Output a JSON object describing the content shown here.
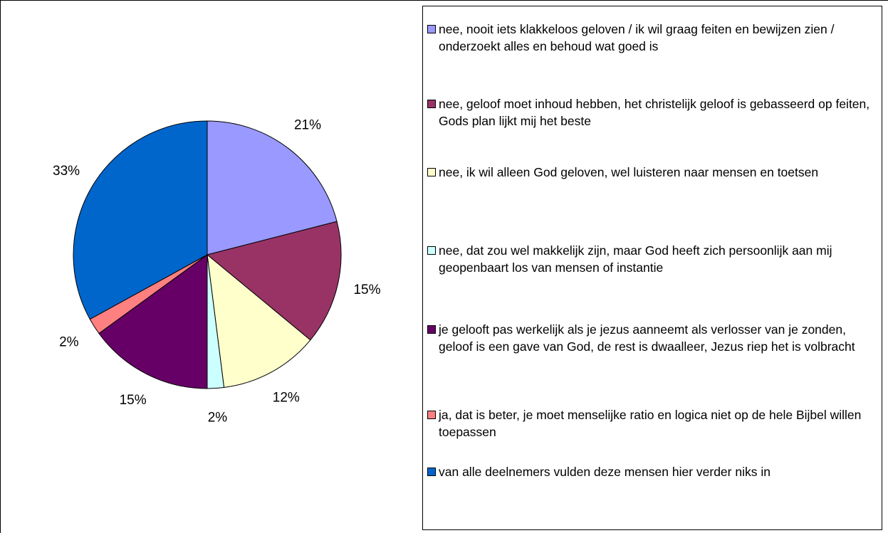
{
  "chart_data": {
    "type": "pie",
    "categories": [
      "nee, nooit iets klakkeloos geloven / ik wil graag feiten en bewijzen zien / onderzoekt alles en behoud wat goed is",
      "nee, geloof moet inhoud hebben, het christelijk geloof is gebasseerd op feiten, Gods plan lijkt mij het beste",
      "nee, ik wil alleen God geloven, wel luisteren naar mensen en toetsen",
      "nee, dat zou wel makkelijk zijn, maar God heeft zich persoonlijk aan mij geopenbaart los van mensen of instantie",
      "je gelooft pas werkelijk als je jezus aanneemt als verlosser van je zonden, geloof is een gave van God, de rest is dwaalleer, Jezus riep het is volbracht",
      "ja, dat is beter, je moet menselijke ratio en logica niet op de hele Bijbel willen toepassen",
      "van alle deelnemers vulden deze mensen hier verder niks in"
    ],
    "values": [
      21,
      15,
      12,
      2,
      15,
      2,
      33
    ],
    "value_labels": [
      "21%",
      "15%",
      "12%",
      "2%",
      "15%",
      "2%",
      "33%"
    ],
    "colors": [
      "#9999ff",
      "#993366",
      "#ffffcc",
      "#ccffff",
      "#660066",
      "#ff8080",
      "#0066cc"
    ],
    "legend": "right"
  }
}
